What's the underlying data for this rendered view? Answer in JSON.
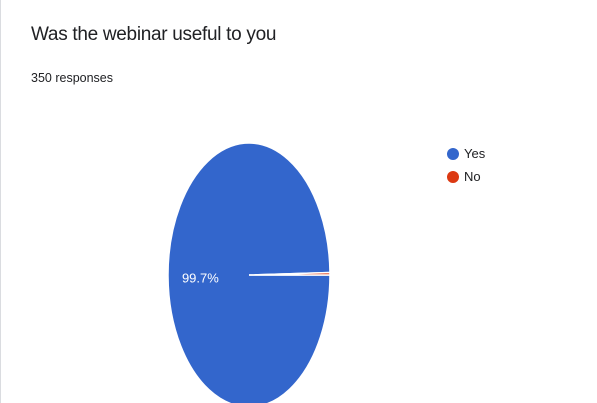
{
  "question": {
    "title": "Was the webinar useful to you",
    "responses": "350 responses"
  },
  "chart_data": {
    "type": "pie",
    "labels": [
      "Yes",
      "No"
    ],
    "values": [
      99.7,
      0.3
    ],
    "data_labels": [
      "99.7%",
      ""
    ],
    "colors": [
      "#3366cc",
      "#dc3912"
    ],
    "legend_position": "right"
  }
}
